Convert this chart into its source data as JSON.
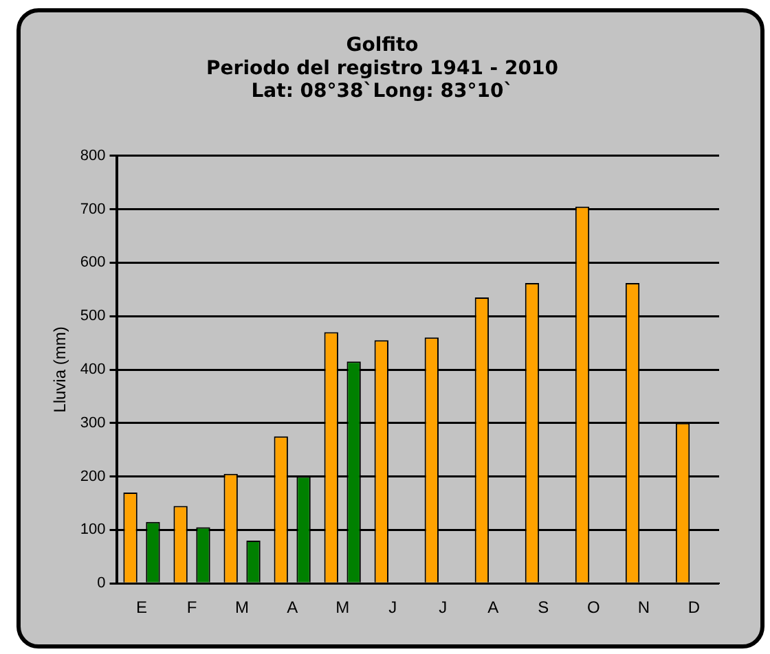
{
  "chart_data": {
    "type": "bar",
    "title": "Golfito\nPeriodo del registro 1941 - 2010\nLat: 08°38`Long: 83°10`",
    "ylabel": "Lluvia (mm)",
    "categories": [
      "E",
      "F",
      "M",
      "A",
      "M",
      "J",
      "J",
      "A",
      "S",
      "O",
      "N",
      "D"
    ],
    "series": [
      {
        "color": "#ffa200",
        "values": [
          170,
          145,
          205,
          275,
          470,
          455,
          460,
          535,
          562,
          705,
          562,
          300
        ]
      },
      {
        "color": "#008000",
        "values": [
          115,
          105,
          80,
          200,
          415,
          null,
          null,
          null,
          null,
          null,
          null,
          null
        ]
      }
    ],
    "ylim": [
      0,
      800
    ],
    "yticks": [
      0,
      100,
      200,
      300,
      400,
      500,
      600,
      700,
      800
    ],
    "grid": "y",
    "legend": false
  }
}
